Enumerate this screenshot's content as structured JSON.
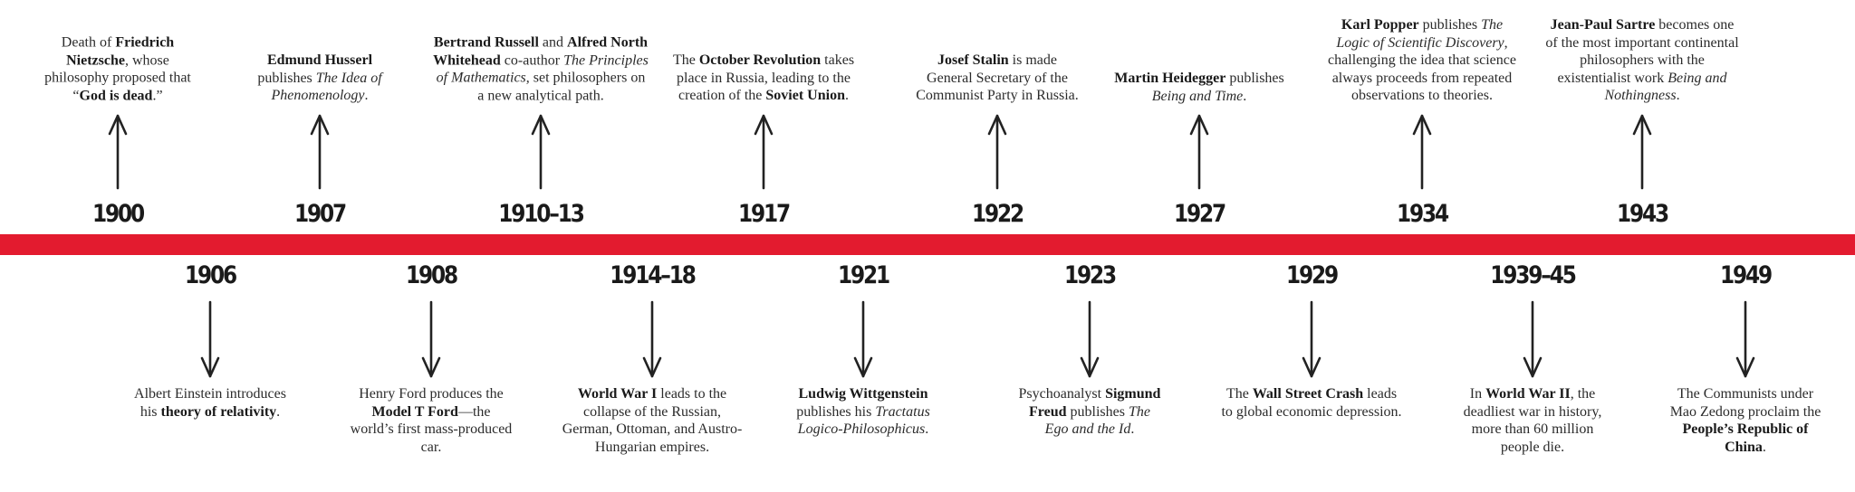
{
  "events_above": [
    {
      "year": "1900",
      "parts": [
        [
          "t",
          "Death of "
        ],
        [
          "b",
          "Friedrich Nietzsche"
        ],
        [
          "t",
          ", whose philosophy proposed that “"
        ],
        [
          "b",
          "God is dead"
        ],
        [
          "t",
          ".”"
        ]
      ]
    },
    {
      "year": "1907",
      "parts": [
        [
          "b",
          "Edmund Husserl"
        ],
        [
          "t",
          " publishes "
        ],
        [
          "i",
          "The Idea of Phenomenology"
        ],
        [
          "t",
          "."
        ]
      ]
    },
    {
      "year": "1910–13",
      "parts": [
        [
          "b",
          "Bertrand Russell"
        ],
        [
          "t",
          " and "
        ],
        [
          "b",
          "Alfred North Whitehead"
        ],
        [
          "t",
          " co-author "
        ],
        [
          "i",
          "The Principles of Mathematics"
        ],
        [
          "t",
          ", set philosophers on a new analytical path."
        ]
      ]
    },
    {
      "year": "1917",
      "parts": [
        [
          "t",
          "The "
        ],
        [
          "b",
          "October Revolution"
        ],
        [
          "t",
          " takes place in Russia, leading to the creation of the "
        ],
        [
          "b",
          "Soviet Union"
        ],
        [
          "t",
          "."
        ]
      ]
    },
    {
      "year": "1922",
      "parts": [
        [
          "b",
          "Josef Stalin"
        ],
        [
          "t",
          " is made General Secretary of the Communist Party in Russia."
        ]
      ]
    },
    {
      "year": "1927",
      "parts": [
        [
          "b",
          "Martin Heidegger"
        ],
        [
          "t",
          " publishes "
        ],
        [
          "i",
          "Being and Time"
        ],
        [
          "t",
          "."
        ]
      ]
    },
    {
      "year": "1934",
      "parts": [
        [
          "b",
          "Karl Popper"
        ],
        [
          "t",
          " publishes "
        ],
        [
          "i",
          "The Logic of Scientific Discovery"
        ],
        [
          "t",
          ", challenging the idea that science always proceeds from repeated observations to theories."
        ]
      ]
    },
    {
      "year": "1943",
      "parts": [
        [
          "b",
          "Jean-Paul Sartre"
        ],
        [
          "t",
          " becomes one of the most important continental philosophers with the existentialist work "
        ],
        [
          "i",
          "Being and Nothingness"
        ],
        [
          "t",
          "."
        ]
      ]
    }
  ],
  "events_below": [
    {
      "year": "1906",
      "parts": [
        [
          "t",
          "Albert Einstein introduces his "
        ],
        [
          "b",
          "theory of relativity"
        ],
        [
          "t",
          "."
        ]
      ]
    },
    {
      "year": "1908",
      "parts": [
        [
          "t",
          "Henry Ford produces the "
        ],
        [
          "b",
          "Model T Ford"
        ],
        [
          "t",
          "—the world’s first mass-produced car."
        ]
      ]
    },
    {
      "year": "1914–18",
      "parts": [
        [
          "b",
          "World War I"
        ],
        [
          "t",
          " leads to the collapse of the Russian, German, Ottoman, and Austro-Hungarian empires."
        ]
      ]
    },
    {
      "year": "1921",
      "parts": [
        [
          "b",
          "Ludwig Wittgenstein"
        ],
        [
          "t",
          " publishes his "
        ],
        [
          "i",
          "Tractatus Logico-Philosophicus"
        ],
        [
          "t",
          "."
        ]
      ]
    },
    {
      "year": "1923",
      "parts": [
        [
          "t",
          "Psychoanalyst "
        ],
        [
          "b",
          "Sigmund Freud"
        ],
        [
          "t",
          " publishes "
        ],
        [
          "i",
          "The Ego and the Id"
        ],
        [
          "t",
          "."
        ]
      ]
    },
    {
      "year": "1929",
      "parts": [
        [
          "t",
          "The "
        ],
        [
          "b",
          "Wall Street Crash"
        ],
        [
          "t",
          " leads to global economic depression."
        ]
      ]
    },
    {
      "year": "1939–45",
      "parts": [
        [
          "t",
          "In "
        ],
        [
          "b",
          "World War II"
        ],
        [
          "t",
          ", the deadliest war in history, more than 60 million people die."
        ]
      ]
    },
    {
      "year": "1949",
      "parts": [
        [
          "t",
          "The Communists under Mao Zedong proclaim the "
        ],
        [
          "b",
          "People’s Republic of China"
        ],
        [
          "t",
          "."
        ]
      ]
    }
  ],
  "colors": {
    "timeline": "#e31b2f",
    "text": "#2b2b2b",
    "year": "#1a1a1a"
  }
}
